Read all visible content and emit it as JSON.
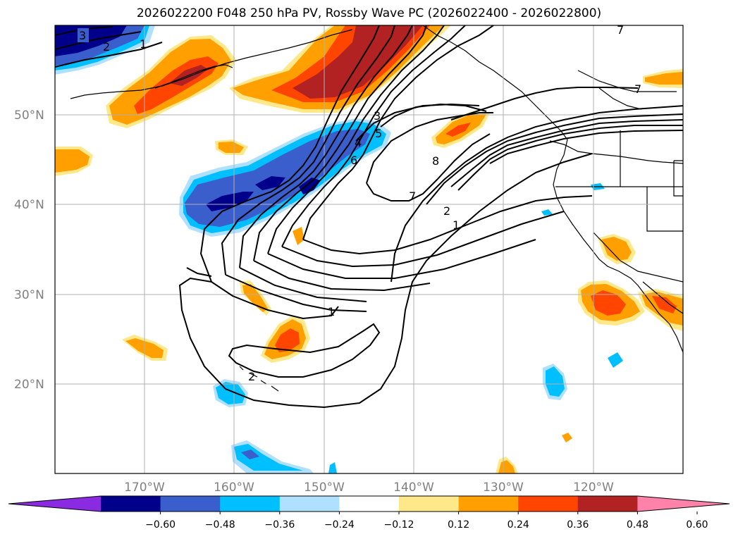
{
  "title": "2026022200 F048 250 hPa PV, Rossby Wave PC (2026022400 - 2026022800)",
  "lat_labels": [
    "50°N",
    "40°N",
    "30°N",
    "20°N"
  ],
  "lon_labels": [
    "170°W",
    "160°W",
    "150°W",
    "140°W",
    "130°W",
    "120°W"
  ],
  "colorbar": {
    "ticks": [
      "−0.60",
      "−0.48",
      "−0.36",
      "−0.24",
      "−0.12",
      "0.12",
      "0.24",
      "0.36",
      "0.48",
      "0.60"
    ],
    "colors": [
      "#8a2be2",
      "#00008b",
      "#3a5fcd",
      "#00bfff",
      "#b0e0ff",
      "#ffffff",
      "#ffe88a",
      "#ffa000",
      "#ff4500",
      "#b22222",
      "#ff82ab"
    ]
  },
  "contour_labels": [
    "3",
    "2",
    "1",
    "3",
    "4",
    "5",
    "6",
    "8",
    "7",
    "2",
    "1",
    "1",
    "2",
    "7",
    "7"
  ],
  "palette": {
    "pos_light": "#ffe88a",
    "pos_orange": "#ffa000",
    "pos_red": "#ff4500",
    "pos_dark": "#b22222",
    "neg_light": "#b0e0ff",
    "neg_cyan": "#00bfff",
    "neg_blue": "#3a5fcd",
    "neg_dark": "#00008b"
  }
}
